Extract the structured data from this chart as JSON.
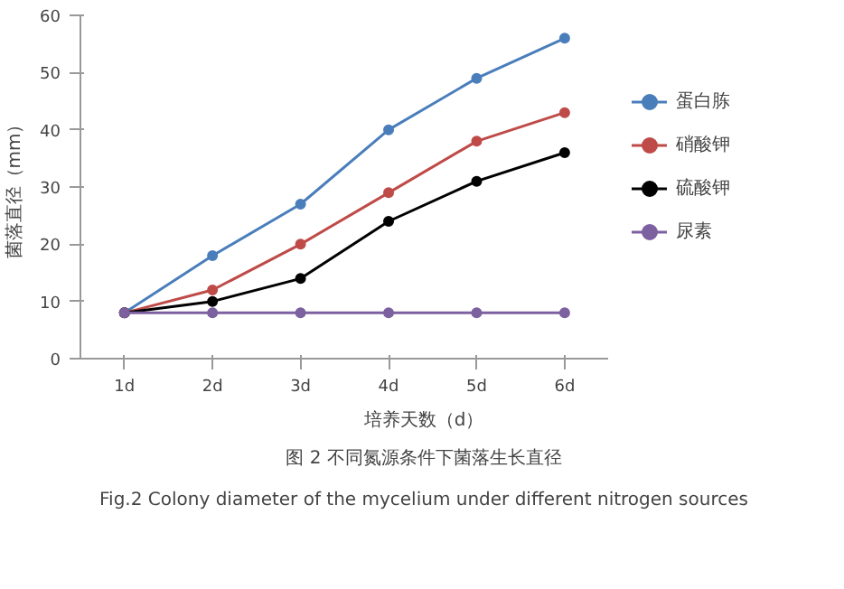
{
  "chart_data": {
    "type": "line",
    "title": "图 2 不同氮源条件下菌落生长直径",
    "subtitle": "Fig.2 Colony diameter of the mycelium under different nitrogen sources",
    "xlabel": "培养天数（d）",
    "ylabel": "菌落直径（mm）",
    "categories": [
      "1d",
      "2d",
      "3d",
      "4d",
      "5d",
      "6d"
    ],
    "series": [
      {
        "name": "蛋白胨",
        "color": "#4a7ebb",
        "values": [
          8,
          18,
          27,
          40,
          49,
          56
        ]
      },
      {
        "name": "硝酸钾",
        "color": "#be4b48",
        "values": [
          8,
          12,
          20,
          29,
          38,
          43
        ]
      },
      {
        "name": "硫酸钾",
        "color": "#000000",
        "values": [
          8,
          10,
          14,
          24,
          31,
          36
        ]
      },
      {
        "name": "尿素",
        "color": "#7d60a0",
        "values": [
          8,
          8,
          8,
          8,
          8,
          8
        ]
      }
    ],
    "ylim": [
      0,
      60
    ],
    "yticks": [
      0,
      10,
      20,
      30,
      40,
      50,
      60
    ],
    "grid": false,
    "legend": "right",
    "marker": "circle",
    "line_style": "solid"
  }
}
